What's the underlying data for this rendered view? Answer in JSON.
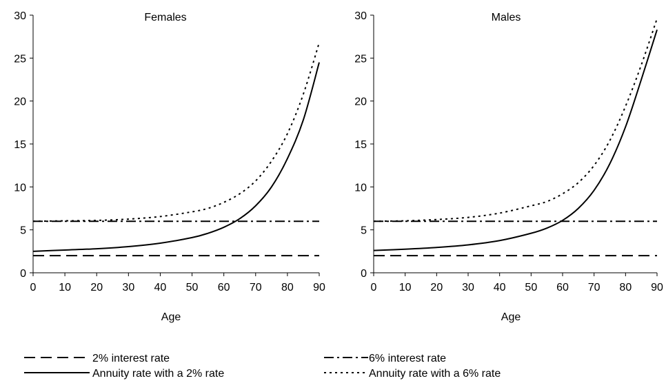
{
  "chart_data": [
    {
      "type": "line",
      "title": "Females",
      "xlabel": "Age",
      "ylabel": "",
      "xlim": [
        0,
        90
      ],
      "ylim": [
        0,
        30
      ],
      "xticks": [
        "0",
        "10",
        "20",
        "30",
        "40",
        "50",
        "60",
        "70",
        "80",
        "90"
      ],
      "yticks": [
        "0",
        "5",
        "10",
        "15",
        "20",
        "25",
        "30"
      ],
      "series": [
        {
          "name": "2% interest rate",
          "x": [
            0,
            90
          ],
          "y": [
            2,
            2
          ]
        },
        {
          "name": "6% interest rate",
          "x": [
            0,
            90
          ],
          "y": [
            6,
            6
          ]
        },
        {
          "name": "Annuity rate with a 2% rate",
          "x": [
            0,
            10,
            20,
            30,
            40,
            50,
            55,
            60,
            65,
            70,
            75,
            80,
            85,
            90
          ],
          "y": [
            2.5,
            2.65,
            2.8,
            3.05,
            3.45,
            4.1,
            4.6,
            5.3,
            6.3,
            7.8,
            10.0,
            13.3,
            17.8,
            24.5
          ]
        },
        {
          "name": "Annuity rate with a 6% rate",
          "x": [
            0,
            10,
            20,
            30,
            40,
            50,
            55,
            60,
            65,
            70,
            75,
            80,
            85,
            90
          ],
          "y": [
            6.0,
            6.05,
            6.1,
            6.25,
            6.55,
            7.1,
            7.5,
            8.2,
            9.2,
            10.7,
            13.0,
            16.2,
            20.8,
            26.8
          ]
        }
      ]
    },
    {
      "type": "line",
      "title": "Males",
      "xlabel": "Age",
      "ylabel": "",
      "xlim": [
        0,
        90
      ],
      "ylim": [
        0,
        30
      ],
      "xticks": [
        "0",
        "10",
        "20",
        "30",
        "40",
        "50",
        "60",
        "70",
        "80",
        "90"
      ],
      "yticks": [
        "0",
        "5",
        "10",
        "15",
        "20",
        "25",
        "30"
      ],
      "series": [
        {
          "name": "2% interest rate",
          "x": [
            0,
            90
          ],
          "y": [
            2,
            2
          ]
        },
        {
          "name": "6% interest rate",
          "x": [
            0,
            90
          ],
          "y": [
            6,
            6
          ]
        },
        {
          "name": "Annuity rate with a 2% rate",
          "x": [
            0,
            10,
            20,
            30,
            40,
            50,
            55,
            60,
            65,
            70,
            75,
            80,
            85,
            90
          ],
          "y": [
            2.6,
            2.75,
            2.95,
            3.25,
            3.75,
            4.6,
            5.2,
            6.1,
            7.5,
            9.6,
            12.7,
            17.0,
            22.5,
            28.3
          ]
        },
        {
          "name": "Annuity rate with a 6% rate",
          "x": [
            0,
            10,
            20,
            30,
            40,
            50,
            55,
            60,
            65,
            70,
            75,
            80,
            85,
            90
          ],
          "y": [
            6.0,
            6.05,
            6.2,
            6.45,
            6.95,
            7.8,
            8.3,
            9.2,
            10.5,
            12.5,
            15.4,
            19.4,
            24.2,
            29.6
          ]
        }
      ]
    }
  ],
  "legend": [
    {
      "label": "2% interest rate",
      "style": "dashed"
    },
    {
      "label": "6% interest rate",
      "style": "dashdot"
    },
    {
      "label": "Annuity rate with a 2% rate",
      "style": "solid"
    },
    {
      "label": "Annuity rate with a 6% rate",
      "style": "dotted"
    }
  ]
}
